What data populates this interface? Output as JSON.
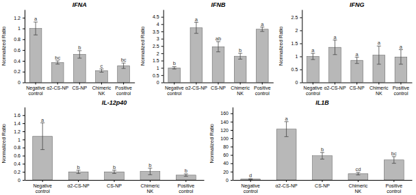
{
  "chart_data": [
    {
      "type": "bar",
      "title": "IFNA",
      "ylabel": "Normalized Ratio",
      "categories": [
        "Negative\ncontrol",
        "α2-CS-NP",
        "CS-NP",
        "Chimeric\nNK",
        "Positive\ncontrol"
      ],
      "values": [
        1.0,
        0.37,
        0.52,
        0.22,
        0.31
      ],
      "errors": [
        0.12,
        0.03,
        0.07,
        0.03,
        0.05
      ],
      "annotations": [
        "a",
        "bc",
        "b",
        "c",
        "bc"
      ],
      "color": "#b8b8b8",
      "ylim": [
        0,
        1.35
      ],
      "yticks": [
        0,
        0.2,
        0.4,
        0.6,
        0.8,
        1,
        1.2
      ],
      "grid": false
    },
    {
      "type": "bar",
      "title": "IFNB",
      "ylabel": "Normalized Ratio",
      "categories": [
        "Negative\ncontrol",
        "α2-CS-NP",
        "CS-NP",
        "Chimeric\nNK",
        "Positive\ncontrol"
      ],
      "values": [
        1.0,
        3.75,
        2.45,
        1.8,
        3.65
      ],
      "errors": [
        0.08,
        0.38,
        0.35,
        0.2,
        0.15
      ],
      "annotations": [
        "b",
        "a",
        "ab",
        "b",
        "a"
      ],
      "color": "#b8b8b8",
      "ylim": [
        0,
        5.0
      ],
      "yticks": [
        0,
        0.5,
        1,
        1.5,
        2,
        2.5,
        3,
        3.5,
        4,
        4.5
      ],
      "grid": false
    },
    {
      "type": "bar",
      "title": "IFNG",
      "ylabel": "Normalized Ratio",
      "categories": [
        "Negative\ncontrol",
        "α2-CS-NP",
        "CS-NP",
        "Chimeric\nNK",
        "Positive\ncontrol"
      ],
      "values": [
        1.0,
        1.35,
        0.85,
        1.05,
        0.98
      ],
      "errors": [
        0.12,
        0.28,
        0.12,
        0.35,
        0.28
      ],
      "annotations": [
        "a",
        "a",
        "a",
        "a",
        "a"
      ],
      "color": "#b8b8b8",
      "ylim": [
        0,
        2.8
      ],
      "yticks": [
        0,
        0.5,
        1,
        1.5,
        2,
        2.5
      ],
      "grid": false
    },
    {
      "type": "bar",
      "title": "IL-12p40",
      "ylabel": "Normalized Ratio",
      "categories": [
        "Negative\ncontrol",
        "α2-CS-NP",
        "CS-NP",
        "Chimeric\nNK",
        "Positive\ncontrol"
      ],
      "values": [
        1.08,
        0.2,
        0.2,
        0.21,
        0.12
      ],
      "errors": [
        0.33,
        0.04,
        0.04,
        0.08,
        0.03
      ],
      "annotations": [
        "a",
        "b",
        "b",
        "b",
        "b"
      ],
      "color": "#b8b8b8",
      "ylim": [
        0,
        1.8
      ],
      "yticks": [
        0,
        0.2,
        0.4,
        0.6,
        0.8,
        1,
        1.2,
        1.4,
        1.6
      ],
      "grid": false
    },
    {
      "type": "bar",
      "title": "IL1B",
      "ylabel": "Normalized Ratio",
      "categories": [
        "Negative\ncontrol",
        "α2-CS-NP",
        "CS-NP",
        "Chimeric\nNK",
        "Positive\ncontrol"
      ],
      "values": [
        2.0,
        122.0,
        58.0,
        15.0,
        48.0
      ],
      "errors": [
        1.0,
        18.0,
        8.0,
        3.0,
        8.0
      ],
      "annotations": [
        "d",
        "a",
        "b",
        "cd",
        "bc"
      ],
      "color": "#b8b8b8",
      "ylim": [
        0,
        175
      ],
      "yticks": [
        0,
        20,
        40,
        60,
        80,
        100,
        120,
        140,
        160
      ],
      "grid": false
    }
  ]
}
